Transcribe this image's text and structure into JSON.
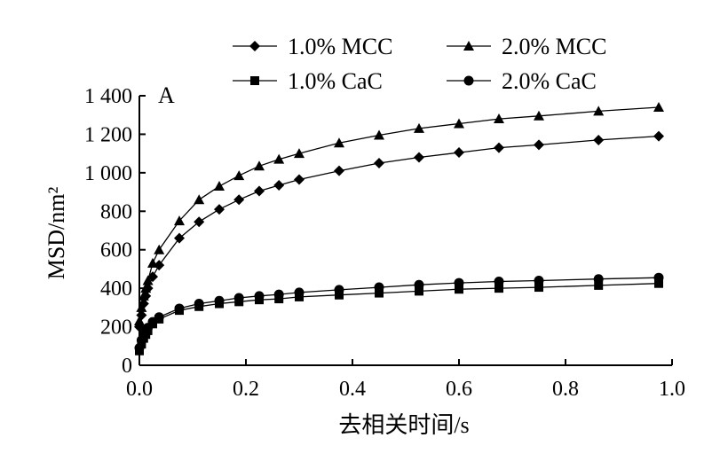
{
  "chart_data": {
    "type": "line",
    "panel_label": "A",
    "xlabel": "去相关时间/s",
    "ylabel": "MSD/nm²",
    "xlim": [
      0,
      1.0
    ],
    "ylim": [
      0,
      1400
    ],
    "xticks": [
      0,
      0.2,
      0.4,
      0.6,
      0.8,
      1.0
    ],
    "xtick_labels": [
      "0.0",
      "0.2",
      "0.4",
      "0.6",
      "0.8",
      "1.0"
    ],
    "yticks": [
      0,
      200,
      400,
      600,
      800,
      1000,
      1200,
      1400
    ],
    "ytick_labels": [
      "0",
      "200",
      "400",
      "600",
      "800",
      "1 000",
      "1 200",
      "1 400"
    ],
    "legend_position": "top",
    "grid": false,
    "series": [
      {
        "name": "1.0% MCC",
        "marker": "diamond",
        "x": [
          0.0,
          0.004,
          0.008,
          0.012,
          0.016,
          0.025,
          0.037,
          0.075,
          0.112,
          0.15,
          0.187,
          0.225,
          0.262,
          0.3,
          0.375,
          0.45,
          0.525,
          0.6,
          0.675,
          0.75,
          0.862,
          0.975
        ],
        "y": [
          200,
          260,
          320,
          360,
          400,
          460,
          520,
          660,
          745,
          810,
          860,
          905,
          935,
          965,
          1010,
          1050,
          1080,
          1105,
          1130,
          1145,
          1170,
          1190
        ]
      },
      {
        "name": "2.0% MCC",
        "marker": "triangle",
        "x": [
          0.0,
          0.004,
          0.008,
          0.012,
          0.016,
          0.025,
          0.037,
          0.075,
          0.112,
          0.15,
          0.187,
          0.225,
          0.262,
          0.3,
          0.375,
          0.45,
          0.525,
          0.6,
          0.675,
          0.75,
          0.862,
          0.975
        ],
        "y": [
          230,
          300,
          360,
          400,
          440,
          530,
          600,
          750,
          860,
          930,
          985,
          1035,
          1070,
          1100,
          1155,
          1195,
          1230,
          1255,
          1280,
          1295,
          1320,
          1340
        ]
      },
      {
        "name": "1.0% CaC",
        "marker": "square",
        "x": [
          0.0,
          0.004,
          0.008,
          0.012,
          0.016,
          0.025,
          0.037,
          0.075,
          0.112,
          0.15,
          0.187,
          0.225,
          0.262,
          0.3,
          0.375,
          0.45,
          0.525,
          0.6,
          0.675,
          0.75,
          0.862,
          0.975
        ],
        "y": [
          75,
          110,
          140,
          160,
          180,
          215,
          240,
          285,
          305,
          320,
          330,
          340,
          345,
          355,
          365,
          375,
          385,
          395,
          400,
          405,
          415,
          425
        ]
      },
      {
        "name": "2.0% CaC",
        "marker": "circle",
        "x": [
          0.0,
          0.004,
          0.008,
          0.012,
          0.016,
          0.025,
          0.037,
          0.075,
          0.112,
          0.15,
          0.187,
          0.225,
          0.262,
          0.3,
          0.375,
          0.45,
          0.525,
          0.6,
          0.675,
          0.75,
          0.862,
          0.975
        ],
        "y": [
          90,
          130,
          160,
          180,
          195,
          225,
          250,
          295,
          320,
          335,
          350,
          360,
          368,
          378,
          392,
          405,
          418,
          428,
          435,
          440,
          448,
          455
        ]
      }
    ]
  }
}
